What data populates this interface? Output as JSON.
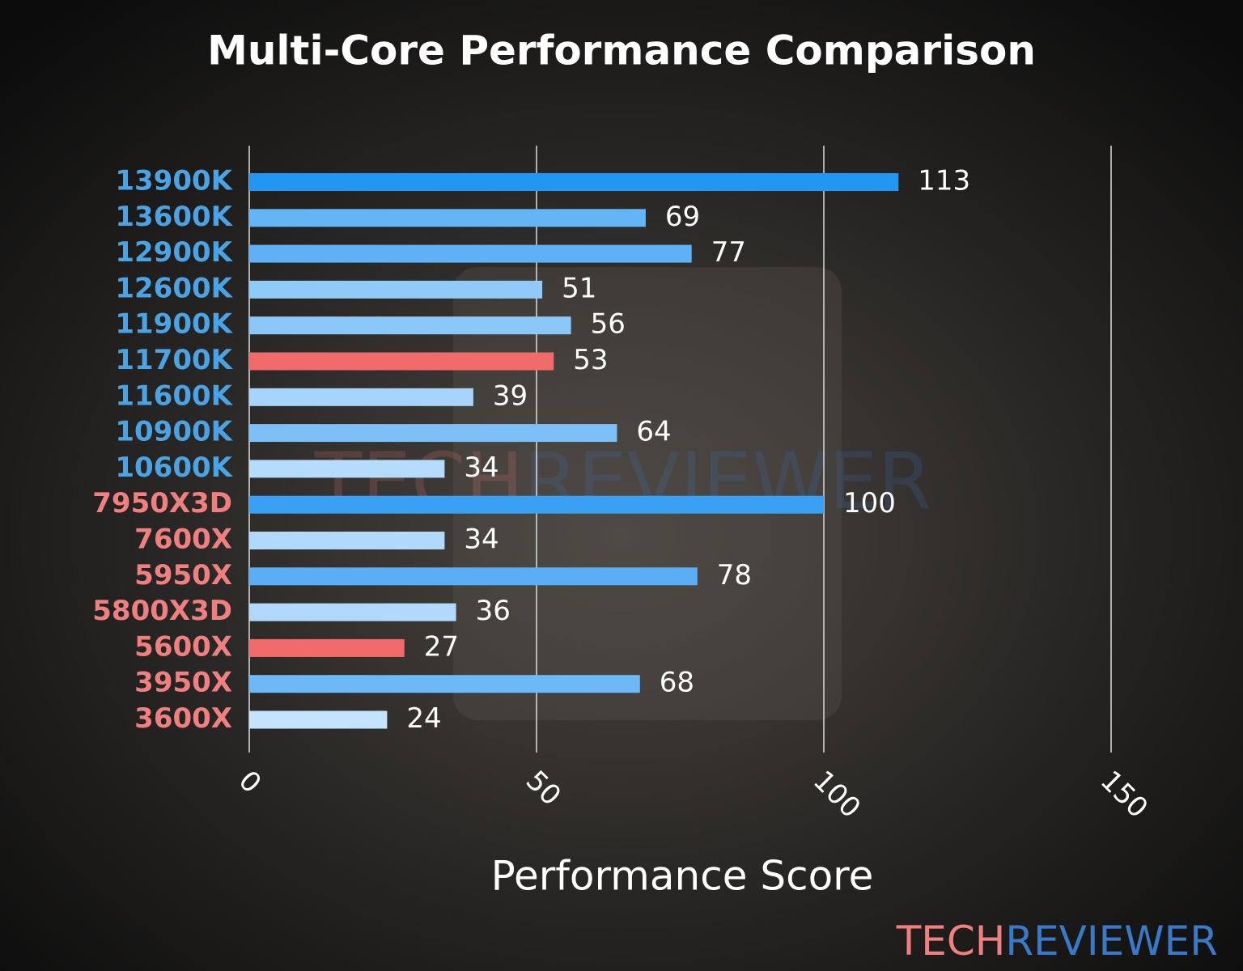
{
  "chart_data": {
    "type": "hbar",
    "title": "Multi-Core Performance Comparison",
    "x_label": "Performance Score",
    "categories": [
      "13900K",
      "13600K",
      "12900K",
      "12600K",
      "11900K",
      "11700K",
      "11600K",
      "10900K",
      "10600K",
      "7950X3D",
      "7600X",
      "5950X",
      "5800X3D",
      "5600X",
      "3950X",
      "3600X"
    ],
    "values": [
      113,
      69,
      77,
      51,
      56,
      53,
      39,
      64,
      34,
      100,
      34,
      78,
      36,
      27,
      68,
      24
    ],
    "colors": [
      "#2196f3",
      "#64b5f6",
      "#5fb0f5",
      "#90caf9",
      "#8ac6f8",
      "#f26b6b",
      "#a6d4fa",
      "#7dc0f7",
      "#b6dcfb",
      "#3aa0f4",
      "#b0d9fb",
      "#5aaef5",
      "#b0d9fb",
      "#f26b6b",
      "#6db9f6",
      "#c4e3fc"
    ],
    "category_colors": [
      "#4ba3e3",
      "#4ba3e3",
      "#4ba3e3",
      "#4ba3e3",
      "#4ba3e3",
      "#4ba3e3",
      "#4ba3e3",
      "#4ba3e3",
      "#4ba3e3",
      "#f08080",
      "#f08080",
      "#f08080",
      "#f08080",
      "#f08080",
      "#f08080",
      "#f08080"
    ],
    "xlim": [
      0,
      150
    ],
    "xticks": [
      0,
      50,
      100,
      150
    ],
    "grid": true,
    "watermark": [
      {
        "text": "TECH",
        "color": "#f08080"
      },
      {
        "text": "REVIEWER",
        "color": "#3a78c8"
      }
    ]
  }
}
